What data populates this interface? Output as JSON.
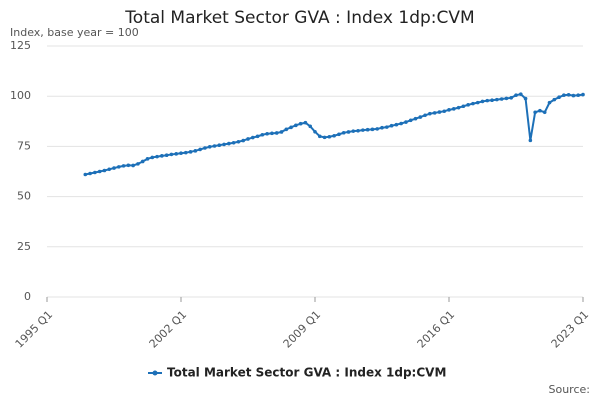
{
  "chart_data": {
    "type": "line",
    "title": "Total Market Sector GVA : Index 1dp:CVM",
    "subtitle": "Index, base year = 100",
    "source": "Source:",
    "categories": [
      "1995 Q1",
      null,
      null,
      null,
      null,
      null,
      null,
      null,
      null,
      null,
      null,
      null,
      null,
      null,
      null,
      null,
      null,
      null,
      null,
      null,
      null,
      null,
      null,
      null,
      null,
      null,
      null,
      null,
      "2002 Q1",
      null,
      null,
      null,
      null,
      null,
      null,
      null,
      null,
      null,
      null,
      null,
      null,
      null,
      null,
      null,
      null,
      null,
      null,
      null,
      null,
      null,
      null,
      null,
      null,
      null,
      null,
      null,
      "2009 Q1",
      null,
      null,
      null,
      null,
      null,
      null,
      null,
      null,
      null,
      null,
      null,
      null,
      null,
      null,
      null,
      null,
      null,
      null,
      null,
      null,
      null,
      null,
      null,
      null,
      null,
      null,
      null,
      "2016 Q1",
      null,
      null,
      null,
      null,
      null,
      null,
      null,
      null,
      null,
      null,
      null,
      null,
      null,
      null,
      null,
      null,
      null,
      null,
      null,
      null,
      null,
      null,
      null,
      null,
      null,
      null,
      null,
      "2023 Q1"
    ],
    "series": [
      {
        "name": "Total Market Sector GVA : Index 1dp:CVM",
        "color": "#1d70b8",
        "values": [
          null,
          null,
          null,
          null,
          null,
          null,
          null,
          null,
          61.0,
          61.5,
          62.0,
          62.5,
          63.0,
          63.6,
          64.2,
          64.8,
          65.3,
          65.6,
          65.5,
          66.3,
          67.5,
          68.8,
          69.5,
          69.9,
          70.3,
          70.6,
          71.0,
          71.3,
          71.6,
          71.9,
          72.3,
          72.8,
          73.5,
          74.2,
          74.8,
          75.2,
          75.6,
          76.0,
          76.4,
          76.8,
          77.3,
          77.9,
          78.7,
          79.4,
          80.0,
          80.8,
          81.3,
          81.5,
          81.7,
          82.2,
          83.5,
          84.5,
          85.5,
          86.3,
          86.8,
          85.0,
          82.3,
          80.0,
          79.5,
          79.8,
          80.3,
          81.0,
          81.8,
          82.2,
          82.6,
          82.8,
          83.1,
          83.3,
          83.5,
          83.7,
          84.3,
          84.6,
          85.3,
          85.8,
          86.4,
          87.1,
          88.0,
          88.8,
          89.6,
          90.5,
          91.3,
          91.7,
          92.1,
          92.5,
          93.2,
          93.7,
          94.3,
          95.0,
          95.7,
          96.3,
          96.8,
          97.4,
          97.8,
          98.0,
          98.3,
          98.6,
          98.9,
          99.2,
          100.5,
          101.0,
          98.8,
          78.0,
          92.0,
          92.8,
          92.0,
          96.8,
          98.3,
          99.5,
          100.5,
          100.7,
          100.3,
          100.5,
          100.8
        ]
      }
    ],
    "ylim": [
      0,
      125
    ],
    "yticks": [
      0,
      25,
      50,
      75,
      100,
      125
    ],
    "grid": true
  }
}
